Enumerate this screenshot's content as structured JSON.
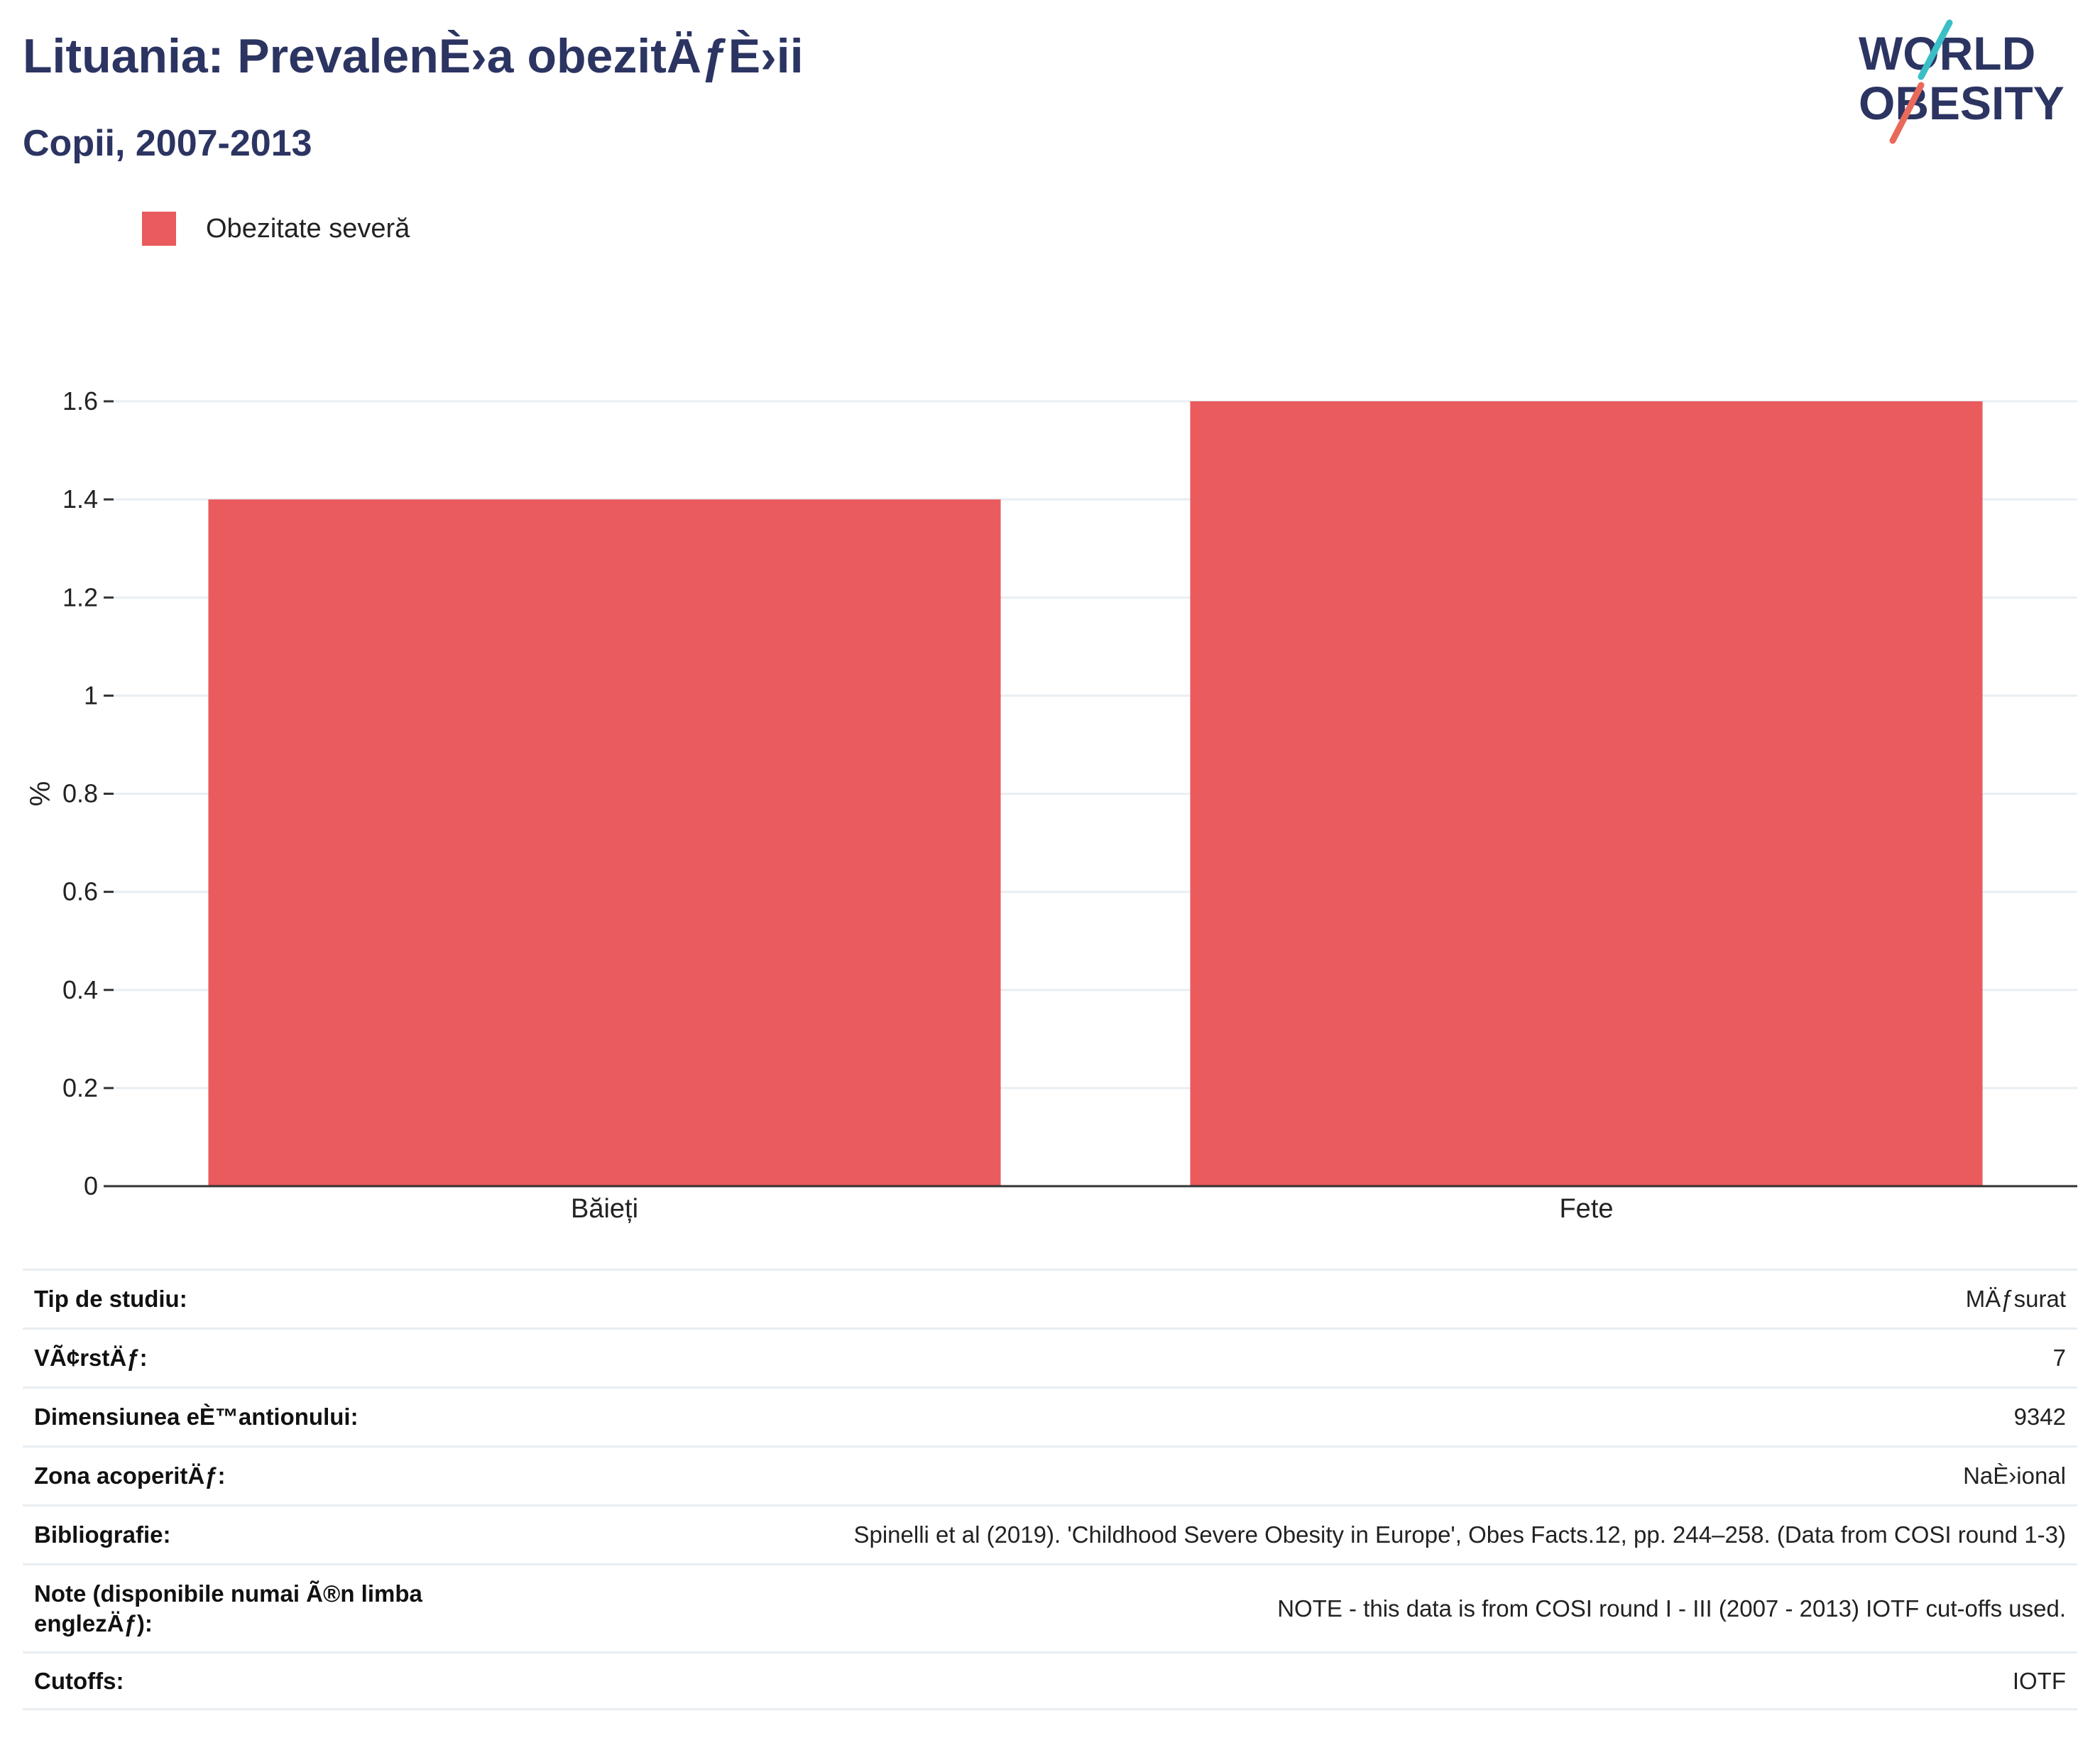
{
  "header": {
    "title": "Lituania: PrevalenÈ›a obezitÄƒÈ›ii",
    "subtitle": "Copii, 2007-2013",
    "logo_text_line1": "WORLD",
    "logo_text_line2": "OBESITY"
  },
  "colors": {
    "bar": "#e95b5d",
    "title": "#2c3462",
    "logo_navy": "#2c3462",
    "logo_teal": "#3bbfc6",
    "logo_coral": "#e96a5b",
    "grid": "#e9eef2",
    "axis": "#333333"
  },
  "legend": {
    "items": [
      {
        "label": "Obezitate severă",
        "color": "#e95b5d"
      }
    ]
  },
  "chart_data": {
    "type": "bar",
    "title": "Lituania: PrevalenÈ›a obezitÄƒÈ›ii",
    "subtitle": "Copii, 2007-2013",
    "categories": [
      "Băieți",
      "Fete"
    ],
    "series": [
      {
        "name": "Obezitate severă",
        "values": [
          1.4,
          1.6
        ]
      }
    ],
    "xlabel": "",
    "ylabel": "%",
    "ylim": [
      0,
      1.6
    ],
    "yticks": [
      0,
      0.2,
      0.4,
      0.6,
      0.8,
      1,
      1.2,
      1.4,
      1.6
    ],
    "ytick_labels": [
      "0",
      "0.2",
      "0.4",
      "0.6",
      "0.8",
      "1",
      "1.2",
      "1.4",
      "1.6"
    ],
    "grid": true,
    "legend_position": "top-left"
  },
  "info_table": {
    "rows": [
      {
        "label": "Tip de studiu:",
        "value": "MÄƒsurat"
      },
      {
        "label": "VÃ¢rstÄƒ:",
        "value": "7"
      },
      {
        "label": "Dimensiunea eÈ™antionului:",
        "value": "9342"
      },
      {
        "label": "Zona acoperitÄƒ:",
        "value": "NaÈ›ional"
      },
      {
        "label": "Bibliografie:",
        "value": "Spinelli et al (2019). 'Childhood Severe Obesity in Europe', Obes Facts.12, pp. 244–258. (Data from COSI round 1-3)"
      },
      {
        "label": "Note (disponibile numai Ã®n limba englezÄƒ):",
        "value": "NOTE - this data is from COSI round I - III (2007 - 2013) IOTF cut-offs used."
      },
      {
        "label": "Cutoffs:",
        "value": "IOTF"
      }
    ]
  }
}
